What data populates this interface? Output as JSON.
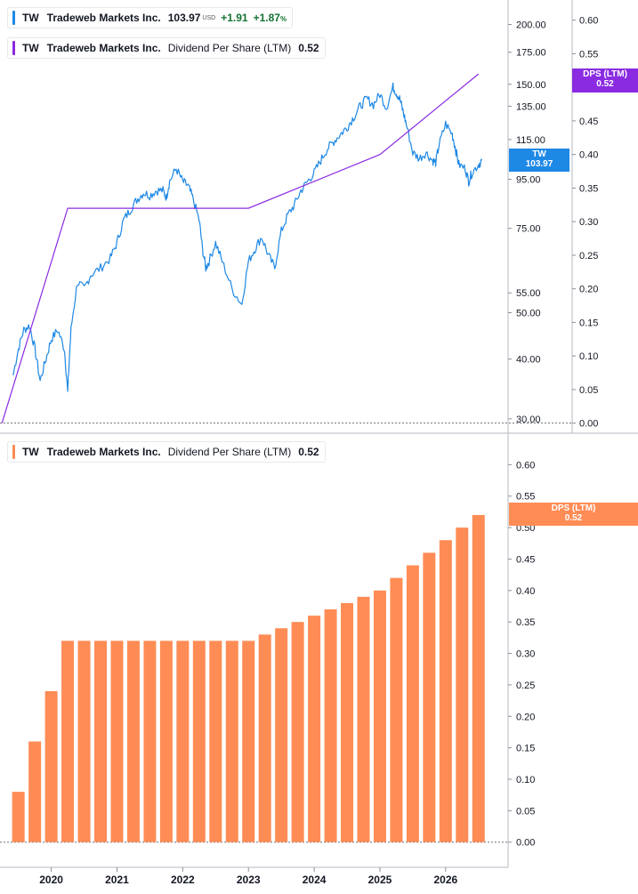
{
  "legends": {
    "price": {
      "ticker": "TW",
      "company": "Tradeweb Markets Inc.",
      "price": "103.97",
      "currency": "USD",
      "change": "+1.91",
      "change_pct": "+1.87",
      "pct_sign": "%"
    },
    "dps_top": {
      "ticker": "TW",
      "company": "Tradeweb Markets Inc.",
      "indicator": "Dividend Per Share (LTM)",
      "value": "0.52"
    },
    "dps_bottom": {
      "ticker": "TW",
      "company": "Tradeweb Markets Inc.",
      "indicator": "Dividend Per Share (LTM)",
      "value": "0.52"
    }
  },
  "tags": {
    "price": {
      "label": "TW",
      "value": "103.97"
    },
    "dps_top": {
      "label": "DPS (LTM)",
      "value": "0.52"
    },
    "dps_bottom": {
      "label": "DPS (LTM)",
      "value": "0.52"
    }
  },
  "colors": {
    "price": "#1e88e5",
    "dps_line": "#8a2be2",
    "dps_bar": "#ff8c55",
    "axis": "#8a8f98",
    "positive": "#137333"
  },
  "chart_data": [
    {
      "type": "line",
      "panel": "top",
      "scale": "log",
      "series": [
        {
          "name": "TW",
          "x": [
            2019.42,
            2019.5,
            2019.58,
            2019.67,
            2019.75,
            2019.83,
            2019.92,
            2020.0,
            2020.1,
            2020.2,
            2020.25,
            2020.3,
            2020.4,
            2020.5,
            2020.6,
            2020.75,
            2020.9,
            2021.0,
            2021.1,
            2021.2,
            2021.3,
            2021.4,
            2021.5,
            2021.6,
            2021.7,
            2021.75,
            2021.8,
            2021.9,
            2022.0,
            2022.08,
            2022.15,
            2022.25,
            2022.3,
            2022.35,
            2022.4,
            2022.5,
            2022.6,
            2022.75,
            2022.9,
            2023.0,
            2023.1,
            2023.2,
            2023.3,
            2023.4,
            2023.5,
            2023.6,
            2023.7,
            2023.8,
            2023.9,
            2024.0,
            2024.1,
            2024.2,
            2024.3,
            2024.4,
            2024.5,
            2024.6,
            2024.7,
            2024.8,
            2024.9,
            2025.0,
            2025.1,
            2025.2,
            2025.25,
            2025.3,
            2025.35,
            2025.4,
            2025.5,
            2025.6,
            2025.7,
            2025.8,
            2025.85,
            2025.9,
            2026.0,
            2026.1,
            2026.15,
            2026.2,
            2026.3,
            2026.35,
            2026.4,
            2026.5,
            2026.55
          ],
          "y": [
            37,
            42,
            46,
            47,
            42,
            36,
            40,
            44,
            46,
            42,
            34,
            46,
            58,
            56,
            60,
            62,
            65,
            70,
            78,
            82,
            86,
            89,
            88,
            90,
            90,
            87,
            94,
            100,
            94,
            92,
            87,
            78,
            68,
            62,
            64,
            70,
            64,
            56,
            52,
            64,
            68,
            72,
            66,
            62,
            74,
            80,
            84,
            90,
            94,
            98,
            104,
            110,
            114,
            118,
            122,
            128,
            135,
            140,
            136,
            143,
            134,
            148,
            144,
            140,
            132,
            124,
            108,
            105,
            108,
            104,
            103,
            112,
            124,
            118,
            110,
            102,
            100,
            94,
            98,
            102,
            103.97
          ]
        }
      ],
      "axis_ticks": [
        30.0,
        40.0,
        50.0,
        55.0,
        75.0,
        95.0,
        115.0,
        135.0,
        150.0,
        175.0,
        200.0
      ],
      "ylim": [
        28,
        225
      ]
    },
    {
      "type": "line",
      "panel": "top",
      "series": [
        {
          "name": "Dividend Per Share (LTM)",
          "x": [
            2019.25,
            2020.25,
            2023.0,
            2025.0,
            2026.5
          ],
          "y": [
            0.0,
            0.32,
            0.32,
            0.4,
            0.52
          ]
        }
      ],
      "axis_ticks": [
        0.0,
        0.05,
        0.1,
        0.15,
        0.2,
        0.25,
        0.3,
        0.35,
        0.4,
        0.45,
        0.5,
        0.55,
        0.6
      ],
      "ylim": [
        -0.015,
        0.63
      ]
    },
    {
      "type": "bar",
      "panel": "bottom",
      "series": [
        {
          "name": "Dividend Per Share (LTM)",
          "x": [
            2019.5,
            2019.75,
            2020.0,
            2020.25,
            2020.5,
            2020.75,
            2021.0,
            2021.25,
            2021.5,
            2021.75,
            2022.0,
            2022.25,
            2022.5,
            2022.75,
            2023.0,
            2023.25,
            2023.5,
            2023.75,
            2024.0,
            2024.25,
            2024.5,
            2024.75,
            2025.0,
            2025.25,
            2025.5,
            2025.75,
            2026.0,
            2026.25,
            2026.5
          ],
          "values": [
            0.08,
            0.16,
            0.24,
            0.32,
            0.32,
            0.32,
            0.32,
            0.32,
            0.32,
            0.32,
            0.32,
            0.32,
            0.32,
            0.32,
            0.32,
            0.33,
            0.34,
            0.35,
            0.36,
            0.37,
            0.38,
            0.39,
            0.4,
            0.42,
            0.44,
            0.46,
            0.48,
            0.5,
            0.52
          ]
        }
      ],
      "axis_ticks": [
        0.0,
        0.05,
        0.1,
        0.15,
        0.2,
        0.25,
        0.3,
        0.35,
        0.4,
        0.45,
        0.5,
        0.55,
        0.6
      ],
      "ylim": [
        -0.04,
        0.65
      ]
    }
  ],
  "x_axis": {
    "ticks": [
      "2020",
      "2021",
      "2022",
      "2023",
      "2024",
      "2025",
      "2026"
    ],
    "xlim": [
      2019.22,
      2026.95
    ]
  }
}
